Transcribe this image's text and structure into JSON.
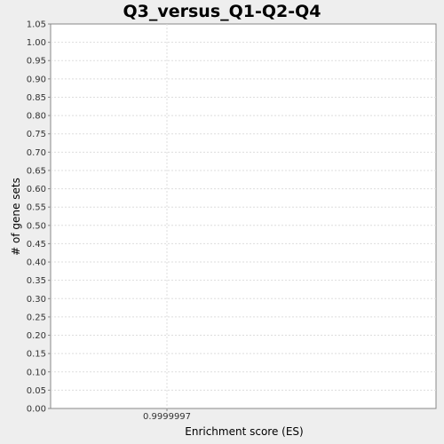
{
  "chart_data": {
    "type": "bar",
    "title": "Q3_versus_Q1-Q2-Q4",
    "xlabel": "Enrichment score (ES)",
    "ylabel": "# of gene sets",
    "categories": [
      "0.9999997"
    ],
    "values": [
      0
    ],
    "ylim": [
      0,
      1.05
    ],
    "ytick_step": 0.05,
    "grid": true,
    "colors": {
      "background": "#eeeeee",
      "plot_area": "#ffffff",
      "gridline": "#dddddd",
      "axis": "#888888"
    }
  }
}
